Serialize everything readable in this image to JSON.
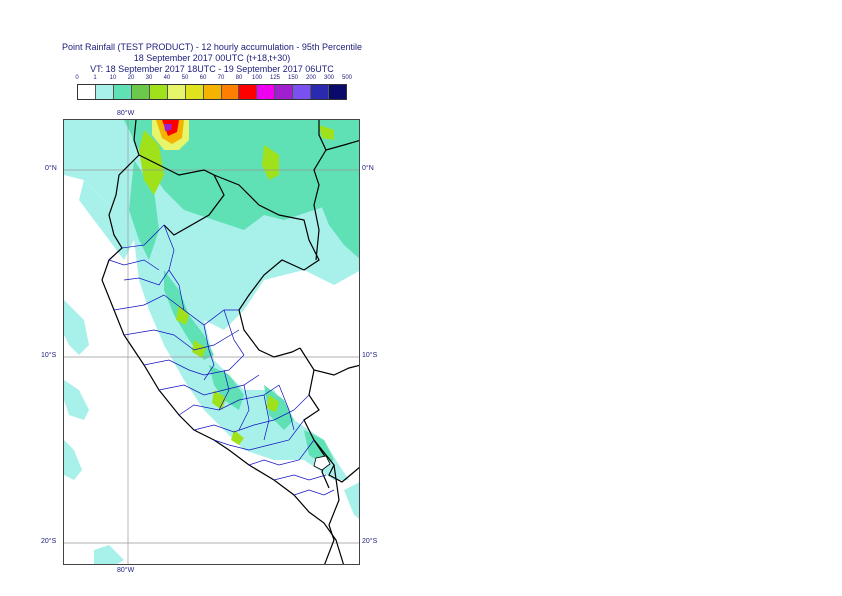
{
  "title": {
    "line1": "Point Rainfall (TEST PRODUCT) - 12 hourly accumulation - 95th Percentile",
    "line2": "18 September 2017 00UTC (t+18,t+30)",
    "line3": "VT: 18 September 2017 18UTC - 19 September 2017 06UTC"
  },
  "legend": {
    "ticks": [
      "0",
      "1",
      "10",
      "20",
      "30",
      "40",
      "50",
      "60",
      "70",
      "80",
      "100",
      "125",
      "150",
      "200",
      "300",
      "500"
    ],
    "colors": [
      "#ffffff",
      "#a8f0ea",
      "#5fe0b5",
      "#6cc84a",
      "#9fe21b",
      "#e6f56a",
      "#e1e21e",
      "#f4b300",
      "#ff7f00",
      "#ff0000",
      "#f000f0",
      "#a020d0",
      "#7a50f0",
      "#2a2ab0",
      "#0a0a6a"
    ]
  },
  "map": {
    "lat_labels": [
      "0°N",
      "10°S",
      "20°S"
    ],
    "lon_labels": [
      "80°W",
      "80°W"
    ]
  }
}
